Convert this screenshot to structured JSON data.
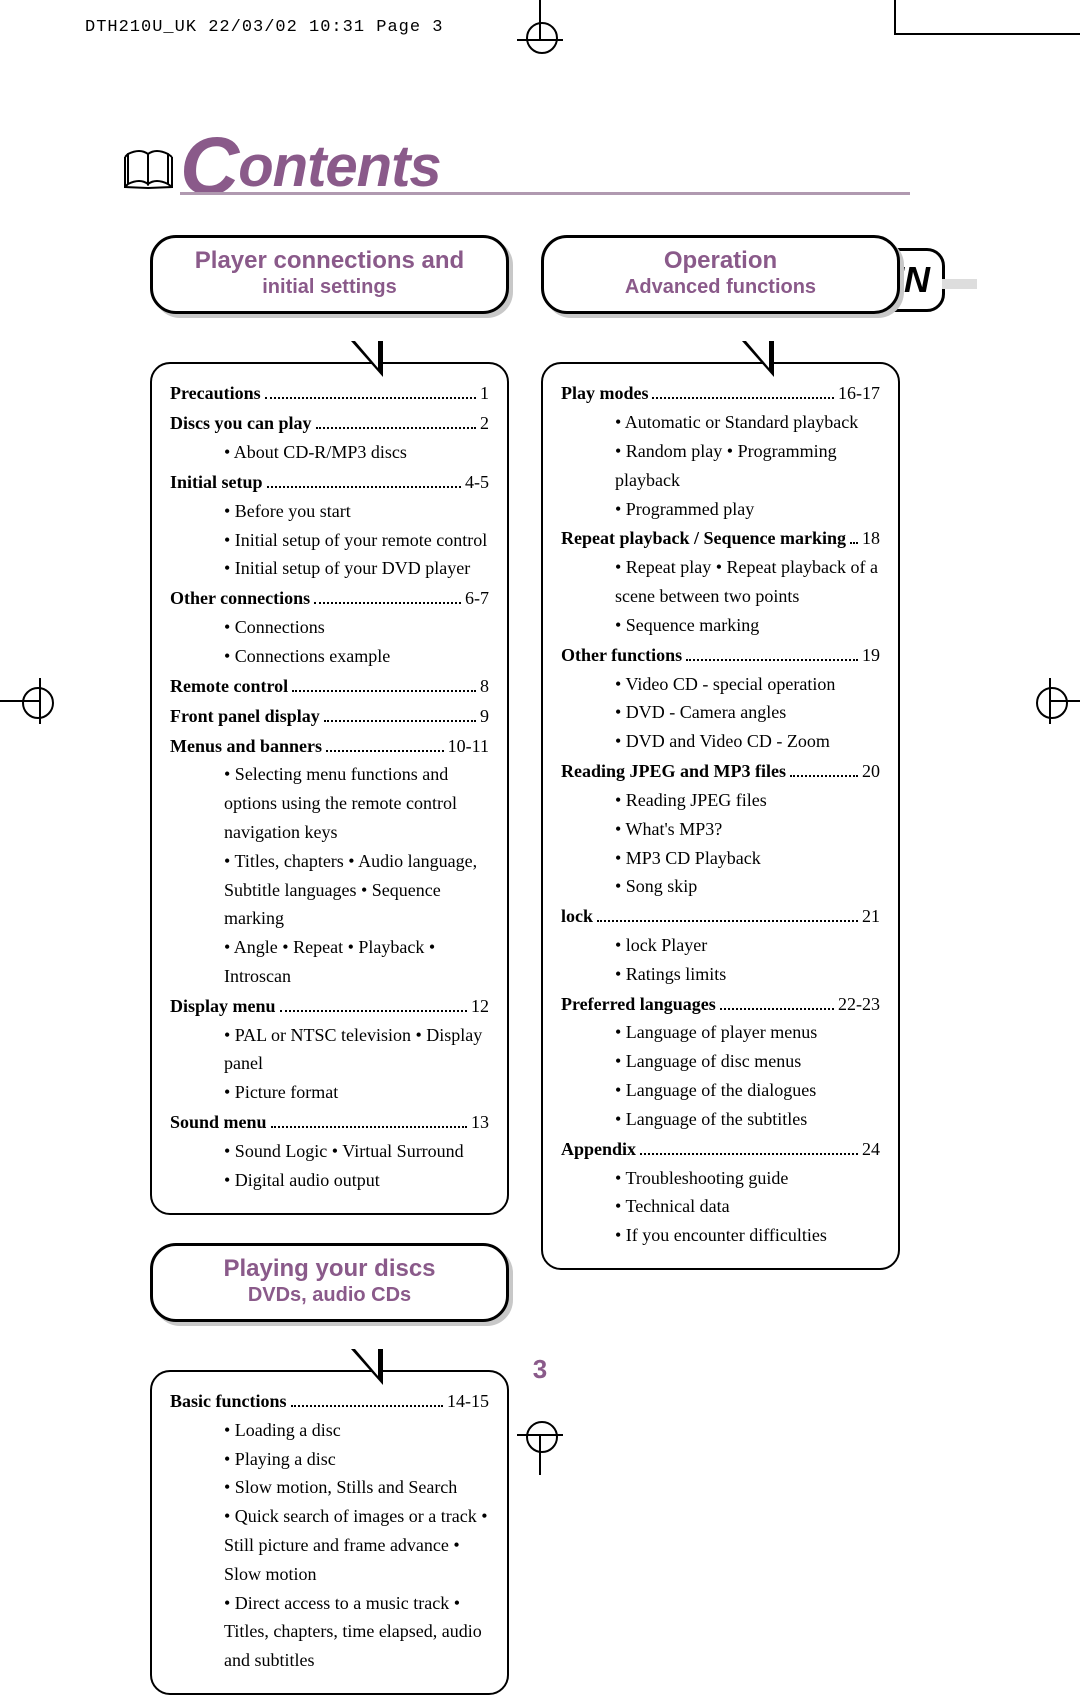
{
  "print_header": "DTH210U_UK  22/03/02 10:31  Page 3",
  "page_title": "Contents",
  "lang_badge": "EN",
  "page_number": "3",
  "colors": {
    "accent": "#8a5a8a",
    "underline": "#b099b0",
    "shadow": "#c8c8c8",
    "text": "#000000",
    "background": "#ffffff"
  },
  "sections": [
    {
      "header_main": "Player connections and",
      "header_sub": "initial settings",
      "entries": [
        {
          "title": "Precautions",
          "page": "1",
          "subs": []
        },
        {
          "title": "Discs you can play",
          "page": "2",
          "subs": [
            "• About CD-R/MP3 discs"
          ]
        },
        {
          "title": "Initial setup",
          "page": "4-5",
          "subs": [
            "• Before you start",
            "• Initial setup of your remote control",
            "• Initial setup of your DVD player"
          ]
        },
        {
          "title": "Other connections",
          "page": "6-7",
          "subs": [
            "• Connections",
            "• Connections example"
          ]
        },
        {
          "title": "Remote control",
          "page": "8",
          "subs": []
        },
        {
          "title": "Front panel display",
          "page": "9",
          "subs": []
        },
        {
          "title": "Menus and banners",
          "page": "10-11",
          "subs": [
            "• Selecting menu functions and options using the remote control navigation keys",
            "• Titles, chapters • Audio language, Subtitle languages • Sequence marking",
            "• Angle • Repeat • Playback • Introscan"
          ]
        },
        {
          "title": "Display menu",
          "page": "12",
          "subs": [
            "• PAL or NTSC television • Display panel",
            "•  Picture format"
          ]
        },
        {
          "title": "Sound menu",
          "page": "13",
          "subs": [
            "• Sound Logic • Virtual Surround",
            "• Digital audio output"
          ]
        }
      ]
    },
    {
      "header_main": "Playing your discs",
      "header_sub": "DVDs, audio CDs",
      "entries": [
        {
          "title": "Basic functions",
          "page": "14-15",
          "subs": [
            "• Loading a disc",
            "• Playing a disc",
            "• Slow motion, Stills and Search",
            "• Quick search of images or a track • Still picture and frame advance •  Slow motion",
            "• Direct access to a music track • Titles, chapters, time elapsed, audio and subtitles"
          ]
        }
      ]
    },
    {
      "header_main": "Operation",
      "header_sub": "Advanced functions",
      "entries": [
        {
          "title": "Play modes",
          "page": "16-17",
          "subs": [
            "• Automatic or Standard playback",
            "• Random play • Programming playback",
            "• Programmed play"
          ]
        },
        {
          "title": "Repeat playback / Sequence marking",
          "page": "18",
          "subs": [
            "• Repeat play •  Repeat playback of a scene between two points",
            "•  Sequence marking"
          ]
        },
        {
          "title": "Other functions",
          "page": "19",
          "subs": [
            "• Video CD -  special operation",
            "• DVD - Camera angles",
            "• DVD and Video CD - Zoom"
          ]
        },
        {
          "title": "Reading JPEG and MP3 files",
          "page": "20",
          "subs": [
            "• Reading JPEG files",
            "• What's MP3?",
            "• MP3 CD Playback",
            "• Song skip"
          ]
        },
        {
          "title": "lock",
          "page": "21",
          "subs": [
            "• lock Player",
            "• Ratings limits"
          ]
        },
        {
          "title": "Preferred languages",
          "page": "22-23",
          "subs": [
            "• Language of player menus",
            "• Language of disc menus",
            "• Language of the dialogues",
            "• Language of the subtitles"
          ]
        },
        {
          "title": "Appendix",
          "page": "24",
          "subs": [
            "• Troubleshooting guide",
            "• Technical data",
            "• If you encounter difficulties"
          ]
        }
      ]
    }
  ]
}
